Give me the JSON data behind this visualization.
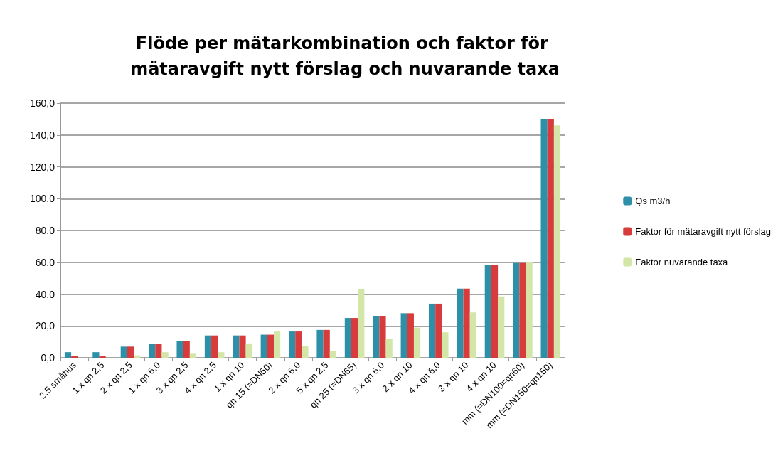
{
  "chart_data": {
    "type": "bar",
    "title": "Flöde per mätarkombination och faktor för mätaravgift nytt förslag och nuvarande taxa",
    "categories": [
      "2,5 småhus",
      "1 x qn 2,5",
      "2 x qn 2,5",
      "1 x qn 6,0",
      "3 x qn 2,5",
      "4 x qn 2,5",
      "1 x qn 10",
      "qn 15 (=DN50)",
      "2 x qn 6,0",
      "5 x qn 2,5",
      "qn 25 (=DN65)",
      "3 x qn 6,0",
      "2 x qn 10",
      "4 x qn 6,0",
      "3 x qn 10",
      "4 x qn 10",
      "mm (=DN100=qn60)",
      "mm (=DN150=qn150)"
    ],
    "series": [
      {
        "name": "Qs m3/h",
        "color": "#2e8fa8",
        "values": [
          3.5,
          3.5,
          7,
          8.5,
          10.5,
          14,
          14,
          14.5,
          16.5,
          17.5,
          25,
          26,
          28,
          34,
          43.5,
          58.5,
          59.5,
          150
        ]
      },
      {
        "name": "Faktor för mätaravgift nytt förslag",
        "color": "#d73b3b",
        "values": [
          1,
          1,
          7,
          8.5,
          10.5,
          14,
          14,
          14.5,
          16.5,
          17.5,
          25,
          26,
          28,
          34,
          43.5,
          58.5,
          59.5,
          150
        ]
      },
      {
        "name": "Faktor nuvarande taxa",
        "color": "#d4e5a8",
        "values": [
          null,
          null,
          1.5,
          3.5,
          2.5,
          3.5,
          9,
          16.5,
          7.5,
          4.5,
          43,
          12,
          19,
          16,
          28.5,
          38.5,
          60,
          146
        ]
      }
    ],
    "ylim": [
      0,
      160
    ],
    "yticks": [
      {
        "value": 0,
        "label": "0,0"
      },
      {
        "value": 20,
        "label": "20,0"
      },
      {
        "value": 40,
        "label": "40,0"
      },
      {
        "value": 60,
        "label": "60,0"
      },
      {
        "value": 80,
        "label": "80,0"
      },
      {
        "value": 100,
        "label": "100,0"
      },
      {
        "value": 120,
        "label": "120,0"
      },
      {
        "value": 140,
        "label": "140,0"
      },
      {
        "value": 160,
        "label": "160,0"
      }
    ],
    "grid": "y",
    "legend": "right"
  }
}
